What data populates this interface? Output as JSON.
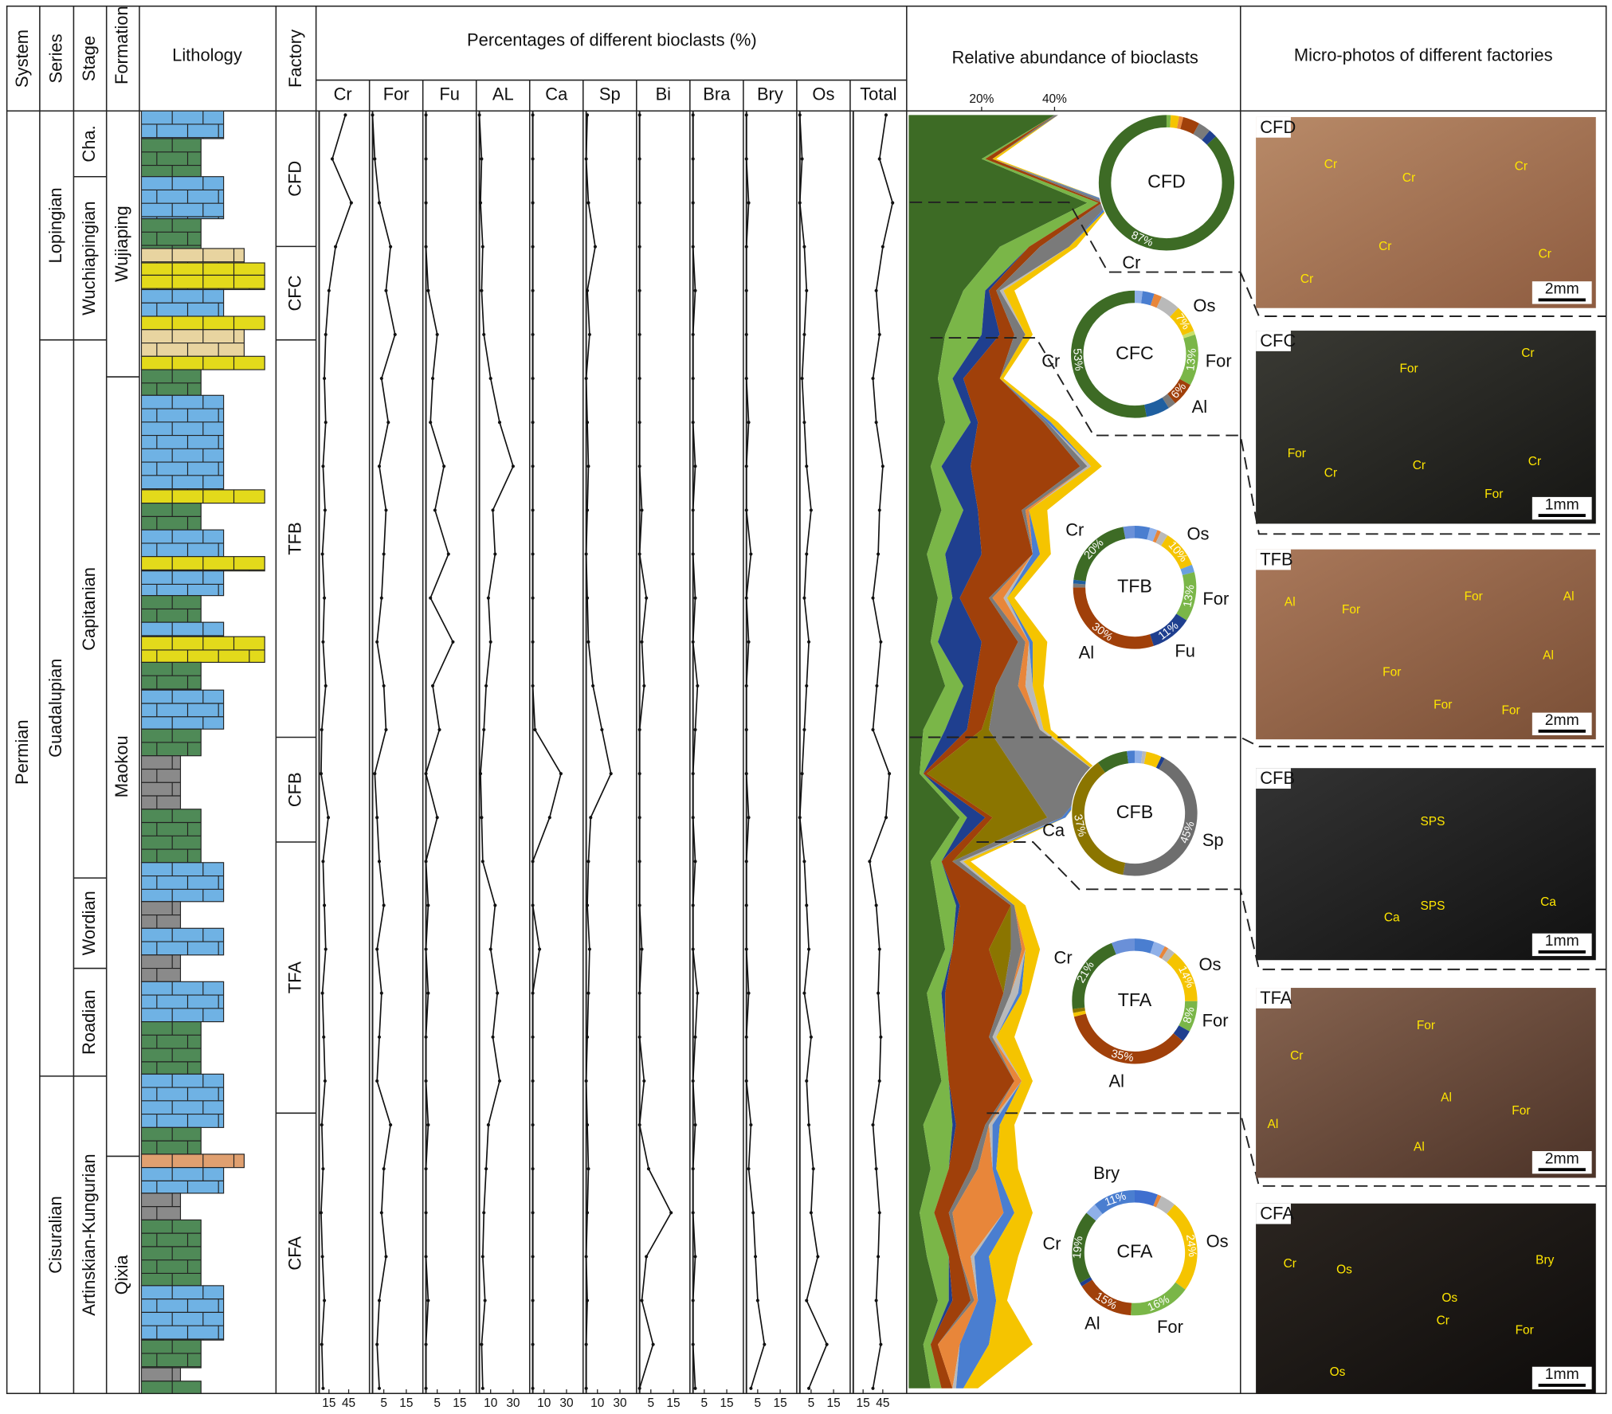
{
  "headers": {
    "system": "System",
    "series": "Series",
    "stage": "Stage",
    "formation": "Formation",
    "lithology": "Lithology",
    "factory": "Factory",
    "percentages": "Percentages of different bioclasts (%)",
    "abundance": "Relative abundance of bioclasts",
    "photos": "Micro-photos of different factories"
  },
  "strat": {
    "system": [
      "Permian"
    ],
    "series": [
      "Lopingian",
      "Guadalupian",
      "Cisuralian"
    ],
    "stages": [
      "Cha.",
      "Wuchiapingian",
      "Capitanian",
      "Wordian",
      "Roadian",
      "Artinskian-Kungurian"
    ],
    "formations": [
      "Wujiaping",
      "Maokou",
      "Qixia"
    ],
    "factories": [
      "CFD",
      "CFC",
      "TFB",
      "CFB",
      "TFA",
      "CFA"
    ]
  },
  "chart_data": {
    "type": "line",
    "series": [
      {
        "name": "Cr",
        "color": "#3d6b25",
        "xlim": [
          0,
          72
        ],
        "xticks": [
          15,
          45
        ],
        "values": [
          40,
          20,
          49,
          25,
          15,
          10,
          8,
          10,
          6,
          9,
          5,
          8,
          6,
          10,
          4,
          3,
          14,
          6,
          8,
          10,
          5,
          7,
          9,
          4,
          6,
          3,
          5,
          8,
          4,
          6
        ]
      },
      {
        "name": "For",
        "color": "#7ab648",
        "xlim": [
          0,
          21
        ],
        "xticks": [
          5,
          15
        ],
        "values": [
          0,
          1,
          3,
          8,
          6,
          10,
          4,
          7,
          3,
          6,
          5,
          4,
          2,
          5,
          6,
          1,
          2,
          3,
          5,
          2,
          4,
          3,
          2,
          8,
          5,
          4,
          6,
          3,
          2,
          3
        ]
      },
      {
        "name": "Fu",
        "color": "#1f3f8f",
        "xlim": [
          0,
          21
        ],
        "xticks": [
          5,
          15
        ],
        "values": [
          0,
          0,
          0,
          0,
          1,
          5,
          3,
          2,
          8,
          4,
          10,
          2,
          12,
          3,
          6,
          0,
          5,
          0,
          1,
          0,
          1,
          0,
          0,
          1,
          0,
          0,
          0,
          1,
          0,
          0
        ]
      },
      {
        "name": "AL",
        "color": "#a0400a",
        "xlim": [
          0,
          42
        ],
        "xticks": [
          10,
          30
        ],
        "values": [
          0,
          2,
          1,
          3,
          2,
          4,
          10,
          18,
          30,
          12,
          14,
          8,
          10,
          6,
          4,
          1,
          2,
          3,
          14,
          10,
          16,
          12,
          18,
          8,
          6,
          4,
          3,
          5,
          2,
          3
        ]
      },
      {
        "name": "Ca",
        "color": "#8b7500",
        "xlim": [
          0,
          42
        ],
        "xticks": [
          10,
          30
        ],
        "values": [
          0,
          0,
          0,
          0,
          0,
          0,
          0,
          0,
          0,
          0,
          0,
          0,
          0,
          0,
          2,
          25,
          15,
          0,
          0,
          6,
          0,
          0,
          0,
          0,
          0,
          0,
          0,
          0,
          0,
          0
        ]
      },
      {
        "name": "Sp",
        "color": "#7a7a7a",
        "xlim": [
          0,
          42
        ],
        "xticks": [
          10,
          30
        ],
        "values": [
          1,
          0,
          2,
          8,
          1,
          3,
          0,
          1,
          2,
          1,
          0,
          1,
          2,
          6,
          14,
          22,
          4,
          2,
          1,
          3,
          2,
          1,
          0,
          1,
          2,
          1,
          0,
          1,
          0,
          0
        ]
      },
      {
        "name": "Bi",
        "color": "#e8863a",
        "xlim": [
          0,
          21
        ],
        "xticks": [
          5,
          15
        ],
        "values": [
          0,
          0,
          0,
          0,
          0,
          0,
          0,
          0,
          0,
          1,
          0,
          3,
          1,
          2,
          0,
          0,
          0,
          0,
          0,
          1,
          0,
          0,
          2,
          0,
          4,
          14,
          3,
          1,
          6,
          0
        ]
      },
      {
        "name": "Bra",
        "color": "#b9b9b9",
        "xlim": [
          0,
          21
        ],
        "xticks": [
          5,
          15
        ],
        "values": [
          0,
          0,
          0,
          0,
          1,
          0,
          0,
          0,
          1,
          0,
          0,
          1,
          0,
          2,
          1,
          0,
          0,
          1,
          0,
          0,
          2,
          1,
          0,
          1,
          0,
          0,
          1,
          0,
          0,
          1
        ]
      },
      {
        "name": "Bry",
        "color": "#4a7ed0",
        "xlim": [
          0,
          21
        ],
        "xticks": [
          5,
          15
        ],
        "values": [
          0,
          0,
          1,
          0,
          0,
          0,
          0,
          1,
          0,
          0,
          2,
          0,
          1,
          0,
          0,
          0,
          1,
          0,
          0,
          0,
          1,
          0,
          0,
          2,
          1,
          3,
          4,
          5,
          8,
          2
        ]
      },
      {
        "name": "Os",
        "color": "#f5c400",
        "xlim": [
          0,
          21
        ],
        "xticks": [
          5,
          15
        ],
        "values": [
          0,
          1,
          0,
          2,
          3,
          2,
          1,
          2,
          3,
          5,
          3,
          2,
          4,
          3,
          2,
          1,
          0,
          2,
          3,
          4,
          2,
          5,
          3,
          4,
          6,
          5,
          8,
          3,
          12,
          4
        ]
      },
      {
        "name": "Total",
        "xlim": [
          0,
          72
        ],
        "xticks": [
          15,
          45
        ],
        "values": [
          50,
          40,
          60,
          45,
          35,
          40,
          30,
          35,
          45,
          40,
          38,
          30,
          42,
          36,
          30,
          55,
          50,
          25,
          35,
          40,
          38,
          42,
          40,
          30,
          35,
          40,
          38,
          35,
          42,
          30
        ]
      }
    ],
    "abundance": {
      "xlim": [
        0,
        91
      ],
      "xticks": [
        {
          "value": 20,
          "label": "20%"
        },
        {
          "value": 40,
          "label": "40%"
        }
      ]
    }
  },
  "donuts": [
    {
      "center": "CFD",
      "values": [
        1,
        2,
        1,
        4,
        3,
        2,
        87
      ],
      "colors": [
        "#7ab648",
        "#f5c400",
        "#e8863a",
        "#a0400a",
        "#7a7a7a",
        "#1f3f8f",
        "#3d6b25"
      ],
      "value_labels": [
        null,
        null,
        null,
        null,
        null,
        null,
        "87%"
      ],
      "names": [
        null,
        null,
        null,
        null,
        null,
        null,
        "Cr"
      ]
    },
    {
      "center": "CFC",
      "values": [
        2,
        3,
        2,
        5,
        7,
        1,
        13,
        6,
        2,
        6,
        53
      ],
      "colors": [
        "#8fb0e8",
        "#4a7ed0",
        "#e8863a",
        "#b9b9b9",
        "#f5c400",
        "#c8e06a",
        "#7ab648",
        "#a0400a",
        "#7a7a7a",
        "#1f5fa0",
        "#3d6b25"
      ],
      "value_labels": [
        null,
        null,
        null,
        null,
        "7%",
        null,
        "13%",
        "6%",
        null,
        null,
        "53%"
      ],
      "names": [
        null,
        null,
        null,
        null,
        "Os",
        null,
        "For",
        "Al",
        null,
        null,
        "Cr"
      ]
    },
    {
      "center": "TFB",
      "values": [
        4,
        2,
        1,
        2,
        10,
        2,
        13,
        11,
        30,
        1,
        1,
        20,
        3
      ],
      "colors": [
        "#4a7ed0",
        "#8fb0e8",
        "#e8863a",
        "#b9b9b9",
        "#f5c400",
        "#6aa0e0",
        "#7ab648",
        "#1f3f8f",
        "#a0400a",
        "#7a7a7a",
        "#1f5fa0",
        "#3d6b25",
        "#6a90d8"
      ],
      "value_labels": [
        null,
        null,
        null,
        null,
        "10%",
        null,
        "13%",
        "11%",
        "30%",
        null,
        null,
        "20%",
        null
      ],
      "names": [
        null,
        null,
        null,
        null,
        "Os",
        null,
        "For",
        "Fu",
        "Al",
        null,
        null,
        "Cr",
        null
      ]
    },
    {
      "center": "CFB",
      "values": [
        2,
        1,
        4,
        1,
        45,
        37,
        8,
        2
      ],
      "colors": [
        "#8fb0e8",
        "#b9b9b9",
        "#f5c400",
        "#1f3f8f",
        "#6e6e6e",
        "#8b7500",
        "#3d6b25",
        "#4a7ed0"
      ],
      "value_labels": [
        null,
        null,
        null,
        null,
        "45%",
        "37%",
        null,
        null
      ],
      "names": [
        null,
        null,
        null,
        null,
        "Sp",
        "Ca",
        null,
        null
      ]
    },
    {
      "center": "TFA",
      "values": [
        5,
        3,
        1,
        2,
        14,
        8,
        3,
        35,
        1,
        1,
        21,
        6
      ],
      "colors": [
        "#4a7ed0",
        "#8fb0e8",
        "#e8863a",
        "#b9b9b9",
        "#f5c400",
        "#7ab648",
        "#1f3f8f",
        "#a0400a",
        "#f5c400",
        "#8b7500",
        "#3d6b25",
        "#6a90d8"
      ],
      "value_labels": [
        null,
        null,
        null,
        null,
        "14%",
        "8%",
        null,
        "35%",
        null,
        null,
        "21%",
        null
      ],
      "names": [
        null,
        null,
        null,
        null,
        "Os",
        "For",
        null,
        "Al",
        null,
        null,
        "Cr",
        null
      ]
    },
    {
      "center": "CFA",
      "values": [
        6,
        1,
        4,
        24,
        16,
        15,
        1,
        19,
        3,
        11
      ],
      "colors": [
        "#3f6fcf",
        "#e8863a",
        "#b9b9b9",
        "#f5c400",
        "#7ab648",
        "#a0400a",
        "#1f3f8f",
        "#3d6b25",
        "#8fb0e8",
        "#4a7ed0"
      ],
      "value_labels": [
        null,
        null,
        null,
        "24%",
        "16%",
        "15%",
        null,
        "19%",
        null,
        "11%"
      ],
      "names": [
        null,
        null,
        null,
        "Os",
        "For",
        "Al",
        null,
        "Cr",
        null,
        "Bry"
      ]
    }
  ],
  "photos": [
    {
      "label": "CFD",
      "scale": "2mm",
      "notes": [
        "Cr",
        "Cr",
        "Cr",
        "Cr",
        "Cr",
        "Cr"
      ]
    },
    {
      "label": "CFC",
      "scale": "1mm",
      "notes": [
        "For",
        "Cr",
        "For",
        "Cr",
        "Cr",
        "For",
        "Cr"
      ]
    },
    {
      "label": "TFB",
      "scale": "2mm",
      "notes": [
        "Al",
        "For",
        "For",
        "Al",
        "Al",
        "For",
        "For",
        "For"
      ]
    },
    {
      "label": "CFB",
      "scale": "1mm",
      "notes": [
        "SPS",
        "Ca",
        "SPS",
        "Ca"
      ]
    },
    {
      "label": "TFA",
      "scale": "2mm",
      "notes": [
        "For",
        "Cr",
        "Al",
        "Al",
        "For",
        "Al"
      ]
    },
    {
      "label": "CFA",
      "scale": "1mm",
      "notes": [
        "Cr",
        "Os",
        "Bry",
        "Os",
        "Cr",
        "For",
        "Os"
      ]
    }
  ]
}
